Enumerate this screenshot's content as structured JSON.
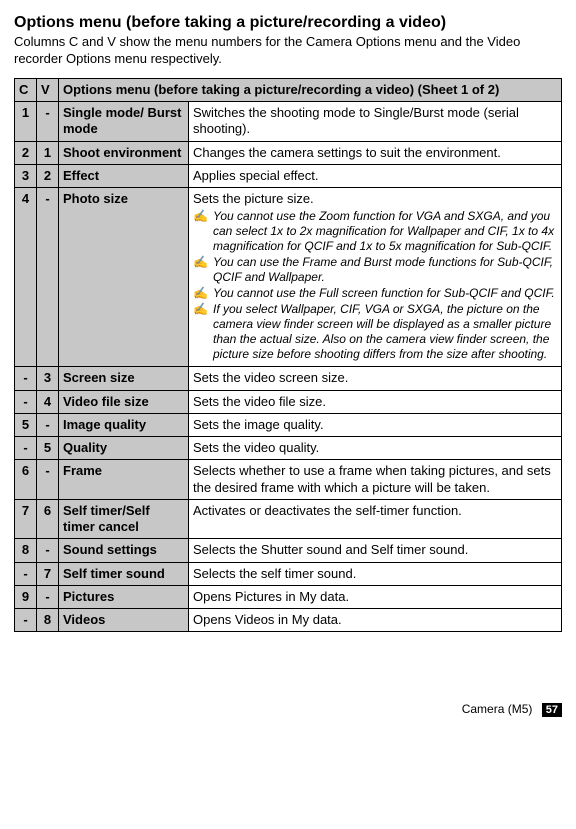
{
  "title": "Options menu (before taking a picture/recording a video)",
  "intro": "Columns C and V show the menu numbers for the Camera Options menu and the Video recorder Options menu respectively.",
  "table_header": {
    "c": "C",
    "v": "V",
    "sheet": "Options menu (before taking a picture/recording a video) (Sheet 1 of 2)"
  },
  "rows": [
    {
      "c": "1",
      "v": "-",
      "name": "Single mode/ Burst mode",
      "desc": "Switches the shooting mode to Single/Burst mode (serial shooting)."
    },
    {
      "c": "2",
      "v": "1",
      "name": "Shoot environment",
      "desc": "Changes the camera settings to suit the environment."
    },
    {
      "c": "3",
      "v": "2",
      "name": "Effect",
      "desc": "Applies special effect."
    },
    {
      "c": "4",
      "v": "-",
      "name": "Photo size",
      "desc": "Sets the picture size.",
      "notes": [
        "You cannot use the Zoom function for VGA and SXGA, and you can select 1x to 2x magnification for Wallpaper and CIF, 1x to 4x magnification for QCIF and 1x to 5x magnification for Sub-QCIF.",
        "You can use the Frame and Burst mode functions for Sub-QCIF, QCIF and Wallpaper.",
        "You cannot use the Full screen function for Sub-QCIF and QCIF.",
        "If you select Wallpaper, CIF, VGA or SXGA, the picture on the camera view finder screen will be displayed as a smaller picture than the actual size. Also on the camera view finder screen, the picture size before shooting differs from the size after shooting."
      ]
    },
    {
      "c": "-",
      "v": "3",
      "name": "Screen size",
      "desc": "Sets the video screen size."
    },
    {
      "c": "-",
      "v": "4",
      "name": "Video file size",
      "desc": "Sets the video file size."
    },
    {
      "c": "5",
      "v": "-",
      "name": "Image quality",
      "desc": "Sets the image quality."
    },
    {
      "c": "-",
      "v": "5",
      "name": "Quality",
      "desc": "Sets the video quality."
    },
    {
      "c": "6",
      "v": "-",
      "name": "Frame",
      "desc": "Selects whether to use a frame when taking pictures, and sets the desired frame with which a picture will be taken."
    },
    {
      "c": "7",
      "v": "6",
      "name": "Self timer/Self timer cancel",
      "desc": "Activates or deactivates the self-timer function."
    },
    {
      "c": "8",
      "v": "-",
      "name": "Sound settings",
      "desc": "Selects the Shutter sound and Self timer sound."
    },
    {
      "c": "-",
      "v": "7",
      "name": "Self timer sound",
      "desc": "Selects the self timer sound."
    },
    {
      "c": "9",
      "v": "-",
      "name": "Pictures",
      "desc": "Opens Pictures in My data."
    },
    {
      "c": "-",
      "v": "8",
      "name": "Videos",
      "desc": "Opens Videos in My data."
    }
  ],
  "footer": {
    "section": "Camera (M5)",
    "page": "57"
  }
}
